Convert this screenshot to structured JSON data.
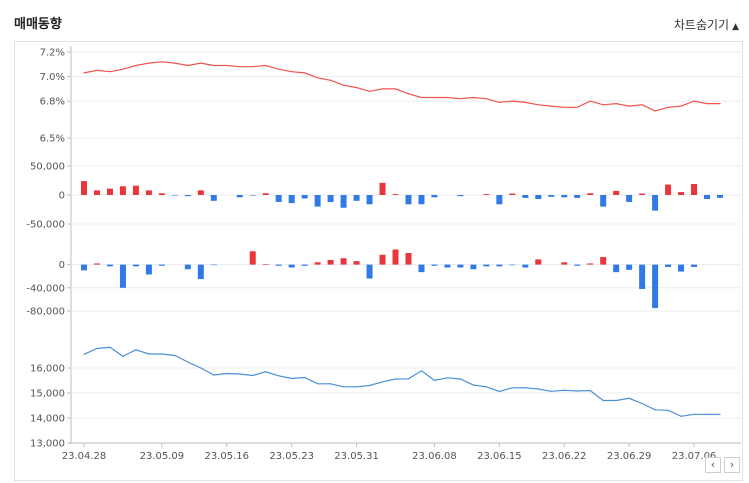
{
  "header": {
    "title": "매매동향",
    "toggle_label": "차트숨기기",
    "toggle_icon": "triangle-up-icon"
  },
  "nav": {
    "prev": "‹",
    "next": "›"
  },
  "colors": {
    "rate": "#f0544f",
    "price": "#4a90d9",
    "positive": "#e8363c",
    "negative": "#2f7ae5",
    "grid": "#ececec"
  },
  "chart_data": [
    {
      "type": "line",
      "ylim": [
        6.5,
        7.2
      ],
      "y_ticks": [
        "7.2%",
        "7.0%",
        "6.8%",
        "6.5%"
      ],
      "values": [
        7.03,
        7.05,
        7.04,
        7.06,
        7.09,
        7.11,
        7.12,
        7.11,
        7.09,
        7.11,
        7.09,
        7.09,
        7.08,
        7.08,
        7.09,
        7.06,
        7.04,
        7.03,
        6.99,
        6.97,
        6.93,
        6.91,
        6.88,
        6.9,
        6.9,
        6.86,
        6.83,
        6.83,
        6.83,
        6.82,
        6.83,
        6.82,
        6.79,
        6.8,
        6.79,
        6.77,
        6.76,
        6.75,
        6.75,
        6.8,
        6.77,
        6.78,
        6.76,
        6.77,
        6.72,
        6.75,
        6.76,
        6.8,
        6.78,
        6.78
      ]
    },
    {
      "type": "bar",
      "ylim": [
        -50000,
        50000
      ],
      "y_ticks": [
        "50,000",
        "0",
        "-50,000"
      ],
      "values": [
        24000,
        8000,
        11000,
        15000,
        16000,
        8000,
        3000,
        -1000,
        -2000,
        8000,
        -10000,
        0,
        -4000,
        -1000,
        3000,
        -12000,
        -14000,
        -6000,
        -20000,
        -12000,
        -22000,
        -10000,
        -16000,
        21000,
        1500,
        -16000,
        -16000,
        -4000,
        0,
        -2000,
        0,
        1500,
        -16000,
        2500,
        -5000,
        -7000,
        -3000,
        -4000,
        -5000,
        3000,
        -20000,
        7000,
        -12000,
        2500,
        -27000,
        18000,
        5000,
        19000,
        -7000,
        -5000
      ]
    },
    {
      "type": "bar",
      "ylim": [
        -80000,
        20000
      ],
      "y_ticks": [
        "0",
        "-40,000",
        "-80,000"
      ],
      "values": [
        -10000,
        2000,
        -3000,
        -40000,
        -3000,
        -17000,
        -2000,
        0,
        -8000,
        -25000,
        -1000,
        0,
        0,
        23000,
        1000,
        -2000,
        -5000,
        -2000,
        4000,
        8000,
        11000,
        6000,
        -24000,
        17000,
        26000,
        20000,
        -13000,
        -2000,
        -5000,
        -5000,
        -8000,
        -3000,
        -3000,
        -1000,
        -5000,
        9000,
        0,
        4000,
        -2000,
        2000,
        13000,
        -13000,
        -9000,
        -42000,
        -75000,
        -4000,
        -12000,
        -4000,
        0,
        0
      ]
    },
    {
      "type": "line",
      "ylim": [
        13000,
        17000
      ],
      "y_ticks": [
        "16,000",
        "15,000",
        "14,000",
        "13,000"
      ],
      "x_labels": [
        "23.04.28",
        "23.05.09",
        "23.05.16",
        "23.05.23",
        "23.05.31",
        "23.06.08",
        "23.06.15",
        "23.06.22",
        "23.06.29",
        "23.07.06"
      ],
      "values": [
        16550,
        16780,
        16830,
        16470,
        16730,
        16560,
        16560,
        16500,
        16240,
        16000,
        15720,
        15780,
        15760,
        15700,
        15850,
        15690,
        15580,
        15620,
        15370,
        15370,
        15250,
        15250,
        15300,
        15450,
        15560,
        15570,
        15890,
        15510,
        15610,
        15560,
        15320,
        15250,
        15060,
        15210,
        15210,
        15160,
        15070,
        15110,
        15080,
        15100,
        14700,
        14700,
        14790,
        14580,
        14330,
        14310,
        14070,
        14150,
        14150,
        14150
      ]
    }
  ]
}
